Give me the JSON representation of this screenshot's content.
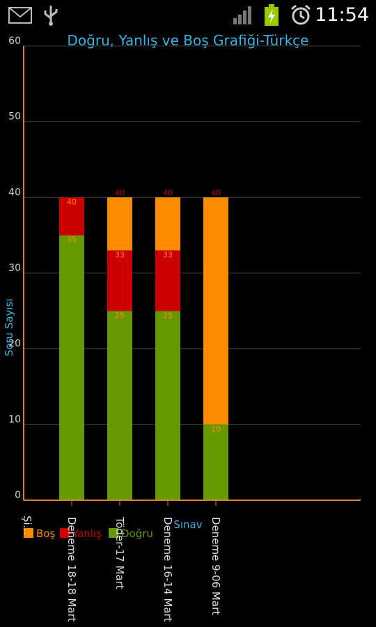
{
  "status_bar": {
    "time": "11:54",
    "icons": [
      "mail-icon",
      "usb-icon",
      "signal-icon",
      "battery-charging-icon",
      "alarm-icon"
    ]
  },
  "colors": {
    "title": "#33b5e5",
    "axis_line": "#d9822b",
    "grid": "#3a3a3a",
    "bos": "#ff8c00",
    "yanlis": "#cc0000",
    "dogru": "#669900"
  },
  "chart_data": {
    "type": "bar",
    "stacked": true,
    "title": "Doğru, Yanlış ve Boş Grafiği-Türkçe",
    "xlabel": "Sınav",
    "ylabel": "Soru Sayısı",
    "ylim": [
      0,
      60
    ],
    "yticks": [
      0,
      10,
      20,
      30,
      40,
      50,
      60
    ],
    "grid": true,
    "legend_position": "bottom-left",
    "categories": [
      "Deneme 18-18 Mart",
      "Töder-17 Mart",
      "Deneme 16-14 Mart",
      "Deneme 9-06 Mart"
    ],
    "series": [
      {
        "name": "Doğru",
        "values": [
          35,
          25,
          25,
          10
        ]
      },
      {
        "name": "Yanlış",
        "values": [
          5,
          8,
          8,
          0
        ]
      },
      {
        "name": "Boş",
        "values": [
          0,
          7,
          7,
          30
        ]
      }
    ],
    "cumulative_labels": [
      [
        35,
        25,
        25,
        10
      ],
      [
        40,
        33,
        33,
        10
      ],
      [
        40,
        40,
        40,
        40
      ]
    ],
    "legend": [
      "Boş",
      "Yanlış",
      "Doğru"
    ],
    "stray_label": "Şi..."
  }
}
